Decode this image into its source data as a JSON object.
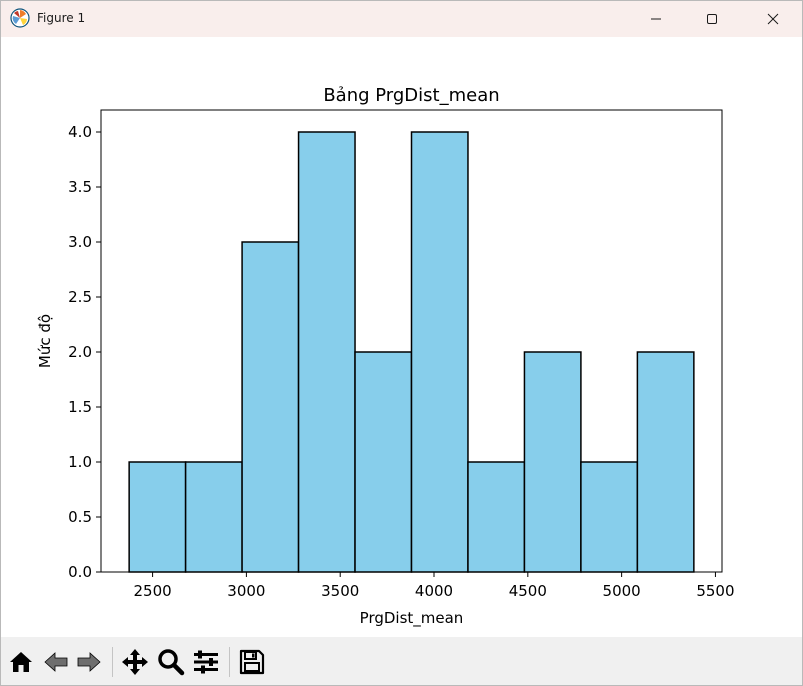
{
  "window": {
    "title": "Figure 1"
  },
  "toolbar": {
    "buttons": [
      {
        "name": "home-icon"
      },
      {
        "name": "back-icon"
      },
      {
        "name": "forward-icon"
      },
      {
        "name": "pan-icon"
      },
      {
        "name": "zoom-icon"
      },
      {
        "name": "configure-subplots-icon"
      },
      {
        "name": "save-icon"
      }
    ]
  },
  "chart_data": {
    "type": "bar",
    "title": "Bảng PrgDist_mean",
    "xlabel": "PrgDist_mean",
    "ylabel": "Mức độ",
    "bin_edges": [
      2375,
      2676,
      2977,
      3278,
      3579,
      3880,
      4181,
      4482,
      4783,
      5084,
      5385
    ],
    "values": [
      1,
      1,
      3,
      4,
      2,
      4,
      1,
      2,
      1,
      2
    ],
    "xlim": [
      2225,
      5535
    ],
    "ylim": [
      0,
      4.2
    ],
    "xticks": [
      2500,
      3000,
      3500,
      4000,
      4500,
      5000,
      5500
    ],
    "yticks": [
      0.0,
      0.5,
      1.0,
      1.5,
      2.0,
      2.5,
      3.0,
      3.5,
      4.0
    ],
    "xtick_labels": [
      "2500",
      "3000",
      "3500",
      "4000",
      "4500",
      "5000",
      "5500"
    ],
    "ytick_labels": [
      "0.0",
      "0.5",
      "1.0",
      "1.5",
      "2.0",
      "2.5",
      "3.0",
      "3.5",
      "4.0"
    ],
    "bar_color": "#87ceeb",
    "edge_color": "#000000",
    "grid": false
  }
}
